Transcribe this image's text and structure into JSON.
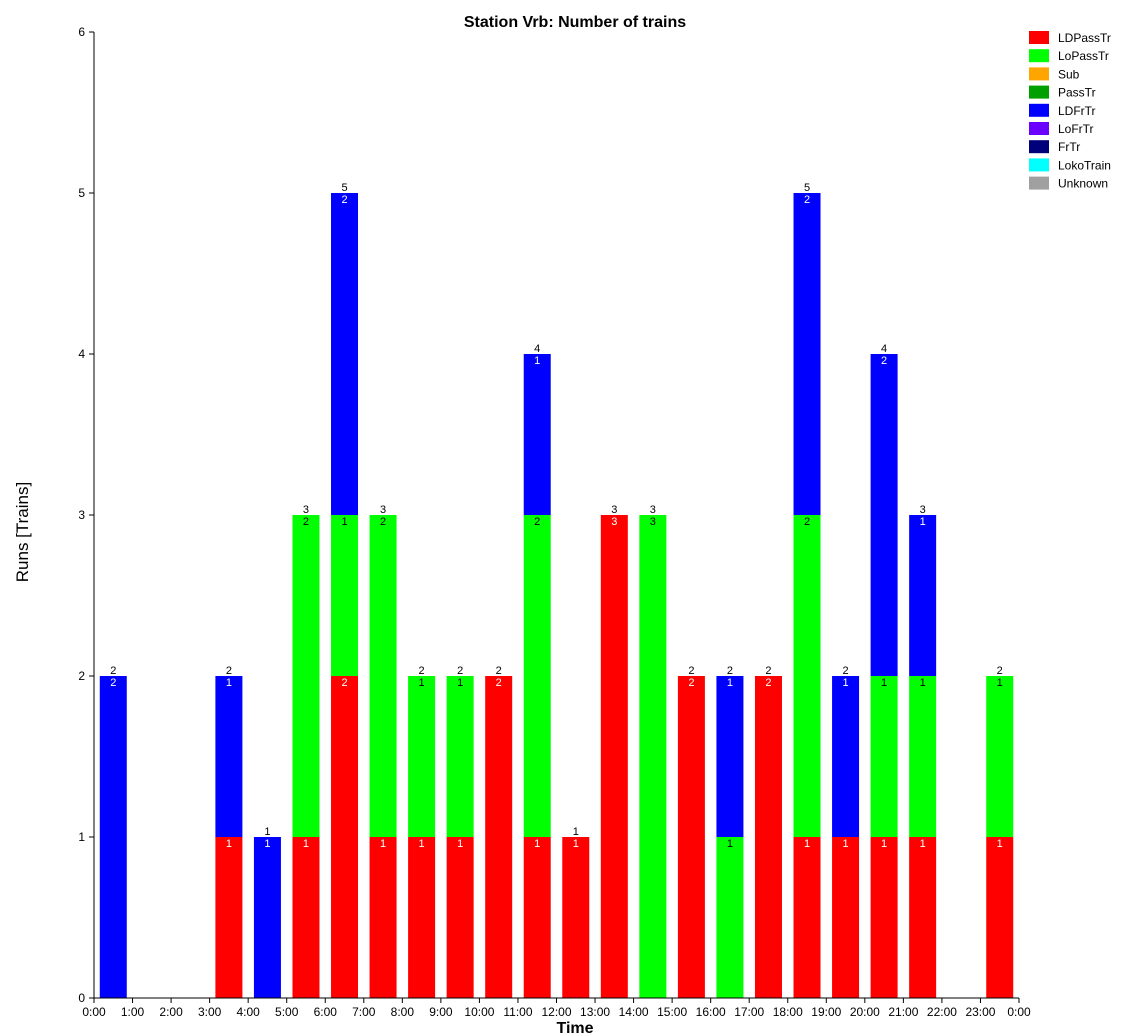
{
  "chart_data": {
    "type": "bar",
    "stacked": true,
    "title": "Station Vrb: Number of trains",
    "xlabel": "Time",
    "ylabel": "Runs [Trains]",
    "ylim": [
      0,
      6
    ],
    "yticks": [
      "0",
      "1",
      "2",
      "3",
      "4",
      "5",
      "6"
    ],
    "xticks": [
      "0:00",
      "1:00",
      "2:00",
      "3:00",
      "4:00",
      "5:00",
      "6:00",
      "7:00",
      "8:00",
      "9:00",
      "10:00",
      "11:00",
      "12:00",
      "13:00",
      "14:00",
      "15:00",
      "16:00",
      "17:00",
      "18:00",
      "19:00",
      "20:00",
      "21:00",
      "22:00",
      "23:00",
      "0:00"
    ],
    "legend_position": "top-right",
    "legend": [
      {
        "name": "LDPassTr",
        "color": "#ff0000"
      },
      {
        "name": "LoPassTr",
        "color": "#00ff00"
      },
      {
        "name": "Sub",
        "color": "#ffa500"
      },
      {
        "name": "PassTr",
        "color": "#00a000"
      },
      {
        "name": "LDFrTr",
        "color": "#0000ff"
      },
      {
        "name": "LoFrTr",
        "color": "#6a00ff"
      },
      {
        "name": "FrTr",
        "color": "#00007a"
      },
      {
        "name": "LokoTrain",
        "color": "#00ffff"
      },
      {
        "name": "Unknown",
        "color": "#a0a0a0"
      }
    ],
    "categories": [
      "0:00",
      "1:00",
      "2:00",
      "3:00",
      "4:00",
      "5:00",
      "6:00",
      "7:00",
      "8:00",
      "9:00",
      "10:00",
      "11:00",
      "12:00",
      "13:00",
      "14:00",
      "15:00",
      "16:00",
      "17:00",
      "18:00",
      "19:00",
      "20:00",
      "21:00",
      "22:00",
      "23:00"
    ],
    "series": [
      {
        "name": "LDPassTr",
        "color": "#ff0000",
        "values": [
          0,
          0,
          0,
          1,
          0,
          1,
          2,
          1,
          1,
          1,
          2,
          1,
          1,
          3,
          0,
          2,
          0,
          2,
          1,
          1,
          1,
          1,
          0,
          1
        ]
      },
      {
        "name": "LoPassTr",
        "color": "#00ff00",
        "values": [
          0,
          0,
          0,
          0,
          0,
          2,
          1,
          2,
          1,
          1,
          0,
          2,
          0,
          0,
          3,
          0,
          1,
          0,
          2,
          0,
          1,
          1,
          0,
          1
        ]
      },
      {
        "name": "LDFrTr",
        "color": "#0000ff",
        "values": [
          2,
          0,
          0,
          1,
          1,
          0,
          2,
          0,
          0,
          0,
          0,
          1,
          0,
          0,
          0,
          0,
          1,
          0,
          2,
          1,
          2,
          1,
          0,
          0
        ]
      }
    ],
    "totals": [
      2,
      0,
      0,
      2,
      1,
      3,
      5,
      3,
      2,
      2,
      2,
      4,
      1,
      3,
      3,
      2,
      2,
      2,
      5,
      2,
      4,
      3,
      0,
      2
    ]
  }
}
